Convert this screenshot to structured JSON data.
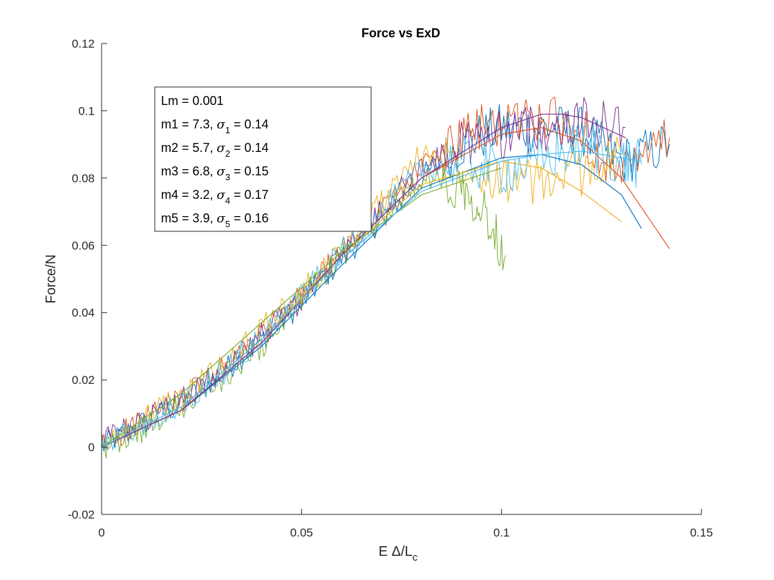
{
  "chart_data": {
    "type": "line",
    "title": "Force vs ExD",
    "ylabel": "Force/N",
    "xlabel": {
      "main": "E Δ/L",
      "subscript": "c"
    },
    "xlim": [
      0,
      0.15
    ],
    "ylim": [
      -0.02,
      0.12
    ],
    "xticks": [
      0,
      0.05,
      0.1,
      0.15
    ],
    "xtick_labels": [
      "0",
      "0.05",
      "0.1",
      "0.15"
    ],
    "yticks": [
      -0.02,
      0,
      0.02,
      0.04,
      0.06,
      0.08,
      0.1,
      0.12
    ],
    "ytick_labels": [
      "-0.02",
      "0",
      "0.02",
      "0.04",
      "0.06",
      "0.08",
      "0.1",
      "0.12"
    ],
    "annotation": {
      "header": "Lm = 0.001",
      "rows": [
        {
          "prefix": "m1 = 7.3, ",
          "sigma": "σ",
          "sub": "1",
          "suffix": " = 0.14"
        },
        {
          "prefix": "m2 = 5.7, ",
          "sigma": "σ",
          "sub": "2",
          "suffix": " = 0.14"
        },
        {
          "prefix": "m3 = 6.8, ",
          "sigma": "σ",
          "sub": "3",
          "suffix": " = 0.15"
        },
        {
          "prefix": "m4 = 3.2, ",
          "sigma": "σ",
          "sub": "4",
          "suffix": " = 0.17"
        },
        {
          "prefix": "m5 = 3.9, ",
          "sigma": "σ",
          "sub": "5",
          "suffix": " = 0.16"
        }
      ]
    },
    "series": [
      {
        "name": "data-1",
        "kind": "measured",
        "color": "#0072BD",
        "x": [
          0,
          0.01,
          0.02,
          0.03,
          0.04,
          0.05,
          0.06,
          0.07,
          0.08,
          0.09,
          0.1,
          0.11,
          0.12,
          0.13,
          0.142
        ],
        "y": [
          0,
          0.007,
          0.013,
          0.022,
          0.032,
          0.043,
          0.056,
          0.068,
          0.08,
          0.09,
          0.095,
          0.095,
          0.094,
          0.085,
          0.09
        ]
      },
      {
        "name": "data-2",
        "kind": "measured",
        "color": "#D95319",
        "x": [
          0,
          0.01,
          0.02,
          0.03,
          0.04,
          0.05,
          0.06,
          0.07,
          0.08,
          0.09,
          0.1,
          0.11,
          0.12,
          0.13,
          0.142
        ],
        "y": [
          0,
          0.008,
          0.014,
          0.023,
          0.033,
          0.045,
          0.058,
          0.07,
          0.083,
          0.092,
          0.097,
          0.098,
          0.094,
          0.08,
          0.092
        ]
      },
      {
        "name": "data-3",
        "kind": "measured",
        "color": "#EDB120",
        "x": [
          0,
          0.01,
          0.02,
          0.03,
          0.04,
          0.05,
          0.06,
          0.07,
          0.08,
          0.09,
          0.1,
          0.11,
          0.12,
          0.13
        ],
        "y": [
          0,
          0.008,
          0.015,
          0.025,
          0.035,
          0.046,
          0.058,
          0.073,
          0.087,
          0.085,
          0.08,
          0.078,
          0.082,
          0.087
        ]
      },
      {
        "name": "data-4",
        "kind": "measured",
        "color": "#7E2F8E",
        "x": [
          0,
          0.01,
          0.02,
          0.03,
          0.04,
          0.05,
          0.06,
          0.07,
          0.08,
          0.09,
          0.1,
          0.11,
          0.12,
          0.131
        ],
        "y": [
          0.002,
          0.007,
          0.014,
          0.023,
          0.033,
          0.044,
          0.057,
          0.07,
          0.083,
          0.09,
          0.093,
          0.095,
          0.097,
          0.095
        ]
      },
      {
        "name": "data-5",
        "kind": "measured",
        "color": "#77AC30",
        "x": [
          0,
          0.01,
          0.02,
          0.03,
          0.04,
          0.05,
          0.06,
          0.07,
          0.08,
          0.09,
          0.095,
          0.101
        ],
        "y": [
          0,
          0.005,
          0.012,
          0.02,
          0.03,
          0.044,
          0.057,
          0.068,
          0.08,
          0.078,
          0.072,
          0.057
        ]
      },
      {
        "name": "data-6",
        "kind": "measured",
        "color": "#4DBEEE",
        "x": [
          0,
          0.01,
          0.02,
          0.03,
          0.04,
          0.05,
          0.06,
          0.07,
          0.08,
          0.09,
          0.1,
          0.11,
          0.12,
          0.13,
          0.135
        ],
        "y": [
          0,
          0.006,
          0.013,
          0.022,
          0.033,
          0.045,
          0.058,
          0.07,
          0.083,
          0.085,
          0.082,
          0.085,
          0.09,
          0.085,
          0.084
        ]
      },
      {
        "name": "fit-1",
        "kind": "fit",
        "color": "#0072BD",
        "x": [
          0,
          0.02,
          0.04,
          0.06,
          0.08,
          0.1,
          0.11,
          0.12,
          0.13,
          0.135
        ],
        "y": [
          0,
          0.011,
          0.03,
          0.054,
          0.077,
          0.086,
          0.087,
          0.084,
          0.075,
          0.065
        ]
      },
      {
        "name": "fit-2",
        "kind": "fit",
        "color": "#D95319",
        "x": [
          0,
          0.02,
          0.04,
          0.06,
          0.08,
          0.1,
          0.11,
          0.12,
          0.13,
          0.142
        ],
        "y": [
          0,
          0.011,
          0.031,
          0.057,
          0.08,
          0.093,
          0.095,
          0.091,
          0.08,
          0.059
        ]
      },
      {
        "name": "fit-3",
        "kind": "fit",
        "color": "#EDB120",
        "x": [
          0,
          0.02,
          0.04,
          0.06,
          0.08,
          0.1,
          0.11,
          0.12,
          0.13
        ],
        "y": [
          0,
          0.012,
          0.032,
          0.057,
          0.078,
          0.085,
          0.083,
          0.076,
          0.067
        ]
      },
      {
        "name": "fit-4",
        "kind": "fit",
        "color": "#7E2F8E",
        "x": [
          0,
          0.02,
          0.04,
          0.06,
          0.08,
          0.1,
          0.11,
          0.115,
          0.12,
          0.131
        ],
        "y": [
          0,
          0.011,
          0.031,
          0.057,
          0.08,
          0.095,
          0.099,
          0.099,
          0.098,
          0.092
        ]
      },
      {
        "name": "fit-5",
        "kind": "fit",
        "color": "#77AC30",
        "x": [
          0,
          0.02,
          0.04,
          0.06,
          0.08,
          0.1
        ],
        "y": [
          0,
          0.016,
          0.037,
          0.058,
          0.075,
          0.083
        ]
      },
      {
        "name": "fit-6",
        "kind": "fit",
        "color": "#4DBEEE",
        "x": [
          0,
          0.02,
          0.04,
          0.06,
          0.08,
          0.1,
          0.11,
          0.12,
          0.13,
          0.135
        ],
        "y": [
          0,
          0.012,
          0.032,
          0.056,
          0.076,
          0.085,
          0.087,
          0.088,
          0.086,
          0.085
        ]
      }
    ]
  }
}
